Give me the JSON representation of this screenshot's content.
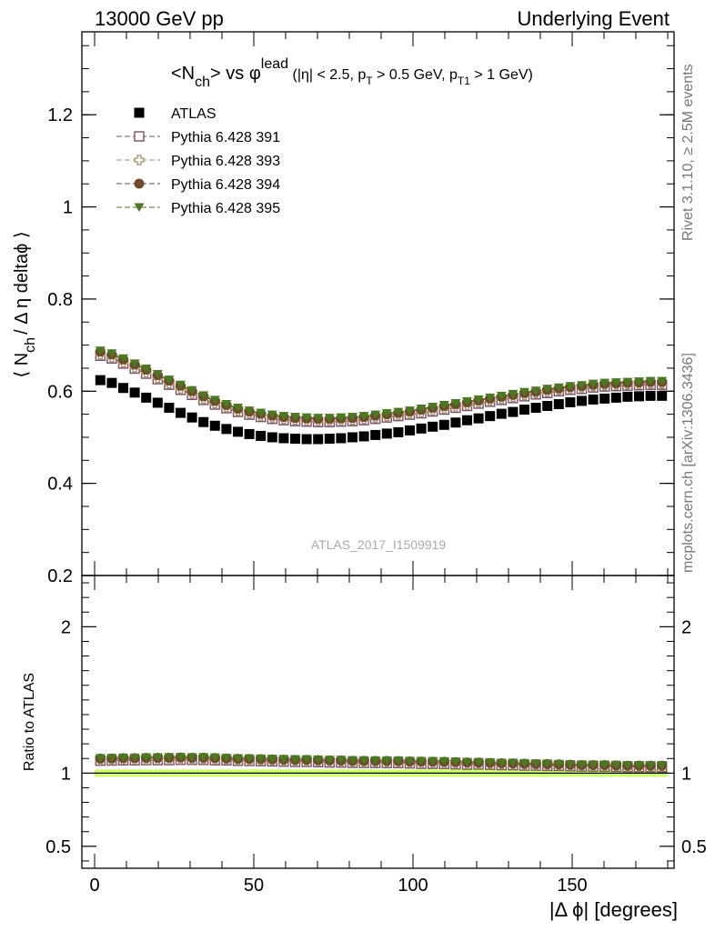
{
  "header": {
    "left": "13000 GeV pp",
    "right": "Underlying Event"
  },
  "side_labels": {
    "rivet": "Rivet 3.1.10, ≥ 2.5M events",
    "mcplots": "mcplots.cern.ch [arXiv:1306.3436]"
  },
  "watermark": "ATLAS_2017_I1509919",
  "chart_data": {
    "type": "scatter",
    "title": {
      "p1": "<N",
      "p1_sub": "ch",
      "p2": "> vs ",
      "p2_phi": "φ",
      "p2_sup": "lead",
      "p3": " (|η| < 2.5, p",
      "p3_sub": "T",
      "p4": " > 0.5 GeV, p",
      "p4_sub": "T1",
      "p5": " > 1 GeV)"
    },
    "ylabel": {
      "p1": "⟨ N",
      "p1_sub": "ch",
      "p2": "/ Δ η deltaϕ ⟩"
    },
    "xlabel": "|Δ ϕ| [degrees]",
    "ratio_ylabel": "Ratio to ATLAS",
    "xlim": [
      -4,
      182
    ],
    "ylim": [
      0.2,
      1.38
    ],
    "ratio_ylim": [
      0.35,
      2.35
    ],
    "x_ticks": [
      {
        "v": 0,
        "label": "0"
      },
      {
        "v": 50,
        "label": "50"
      },
      {
        "v": 100,
        "label": "100"
      },
      {
        "v": 150,
        "label": "150"
      }
    ],
    "y_ticks": [
      {
        "v": 0.2,
        "label": "0.2"
      },
      {
        "v": 0.4,
        "label": "0.4"
      },
      {
        "v": 0.6,
        "label": "0.6"
      },
      {
        "v": 0.8,
        "label": "0.8"
      },
      {
        "v": 1.0,
        "label": "1"
      },
      {
        "v": 1.2,
        "label": "1.2"
      }
    ],
    "ratio_y_ticks": [
      {
        "v": 0.5,
        "label": "0.5"
      },
      {
        "v": 1.0,
        "label": "1"
      },
      {
        "v": 2.0,
        "label": "2"
      }
    ],
    "x": [
      1.8,
      5.4,
      9.0,
      12.6,
      16.2,
      19.8,
      23.4,
      27.0,
      30.6,
      34.2,
      37.8,
      41.4,
      45.0,
      48.6,
      52.2,
      55.8,
      59.4,
      63.0,
      66.6,
      70.2,
      73.8,
      77.4,
      81.0,
      84.6,
      88.2,
      91.8,
      95.4,
      99.0,
      102.6,
      106.2,
      109.8,
      113.4,
      117.0,
      120.6,
      124.2,
      127.8,
      131.4,
      135.0,
      138.6,
      142.2,
      145.8,
      149.4,
      153.0,
      156.6,
      160.2,
      163.8,
      167.4,
      171.0,
      174.6,
      178.2
    ],
    "series": [
      {
        "name": "ATLAS",
        "marker": "square-filled",
        "color": "#000000",
        "values": [
          0.624,
          0.618,
          0.607,
          0.597,
          0.586,
          0.575,
          0.564,
          0.553,
          0.543,
          0.533,
          0.525,
          0.518,
          0.512,
          0.507,
          0.503,
          0.5,
          0.498,
          0.497,
          0.496,
          0.496,
          0.497,
          0.498,
          0.5,
          0.502,
          0.505,
          0.508,
          0.511,
          0.515,
          0.519,
          0.523,
          0.527,
          0.532,
          0.537,
          0.541,
          0.546,
          0.551,
          0.555,
          0.56,
          0.564,
          0.568,
          0.572,
          0.576,
          0.579,
          0.582,
          0.584,
          0.586,
          0.588,
          0.589,
          0.59,
          0.59
        ]
      },
      {
        "name": "Pythia 6.428 391",
        "marker": "square-open",
        "color": "#7b4f6a",
        "values": [
          0.677,
          0.671,
          0.66,
          0.649,
          0.638,
          0.626,
          0.614,
          0.603,
          0.592,
          0.581,
          0.571,
          0.563,
          0.555,
          0.549,
          0.544,
          0.54,
          0.537,
          0.535,
          0.534,
          0.533,
          0.533,
          0.534,
          0.535,
          0.537,
          0.54,
          0.543,
          0.546,
          0.549,
          0.552,
          0.556,
          0.56,
          0.564,
          0.568,
          0.573,
          0.577,
          0.581,
          0.585,
          0.589,
          0.593,
          0.596,
          0.6,
          0.603,
          0.605,
          0.608,
          0.61,
          0.611,
          0.612,
          0.613,
          0.614,
          0.614
        ]
      },
      {
        "name": "Pythia 6.428 393",
        "marker": "cross-open",
        "color": "#a89060",
        "values": [
          0.68,
          0.674,
          0.663,
          0.652,
          0.641,
          0.629,
          0.617,
          0.606,
          0.595,
          0.584,
          0.574,
          0.566,
          0.558,
          0.552,
          0.547,
          0.543,
          0.54,
          0.538,
          0.537,
          0.536,
          0.536,
          0.537,
          0.538,
          0.54,
          0.543,
          0.546,
          0.549,
          0.552,
          0.555,
          0.559,
          0.563,
          0.567,
          0.571,
          0.576,
          0.58,
          0.584,
          0.588,
          0.592,
          0.596,
          0.599,
          0.603,
          0.606,
          0.608,
          0.611,
          0.613,
          0.614,
          0.615,
          0.616,
          0.617,
          0.617
        ]
      },
      {
        "name": "Pythia 6.428 394",
        "marker": "circle-filled",
        "color": "#6e4a2e",
        "values": [
          0.686,
          0.68,
          0.669,
          0.658,
          0.647,
          0.635,
          0.623,
          0.612,
          0.6,
          0.589,
          0.579,
          0.57,
          0.562,
          0.556,
          0.551,
          0.547,
          0.544,
          0.542,
          0.541,
          0.54,
          0.54,
          0.541,
          0.542,
          0.544,
          0.547,
          0.55,
          0.553,
          0.556,
          0.56,
          0.564,
          0.568,
          0.572,
          0.576,
          0.58,
          0.584,
          0.588,
          0.592,
          0.596,
          0.599,
          0.603,
          0.606,
          0.609,
          0.611,
          0.614,
          0.616,
          0.617,
          0.618,
          0.619,
          0.62,
          0.62
        ]
      },
      {
        "name": "Pythia 6.428 395",
        "marker": "triangle-down-filled",
        "color": "#4a7a1e",
        "values": [
          0.688,
          0.682,
          0.671,
          0.66,
          0.649,
          0.637,
          0.625,
          0.614,
          0.602,
          0.591,
          0.581,
          0.572,
          0.564,
          0.558,
          0.553,
          0.549,
          0.546,
          0.544,
          0.543,
          0.542,
          0.542,
          0.543,
          0.544,
          0.546,
          0.549,
          0.552,
          0.555,
          0.558,
          0.562,
          0.566,
          0.57,
          0.574,
          0.578,
          0.582,
          0.586,
          0.59,
          0.594,
          0.598,
          0.601,
          0.605,
          0.608,
          0.611,
          0.613,
          0.616,
          0.618,
          0.619,
          0.62,
          0.621,
          0.622,
          0.622
        ]
      }
    ],
    "ratio_band_color": "#ccff66",
    "colors": {
      "olive_fill": "#5a7a2a"
    }
  }
}
